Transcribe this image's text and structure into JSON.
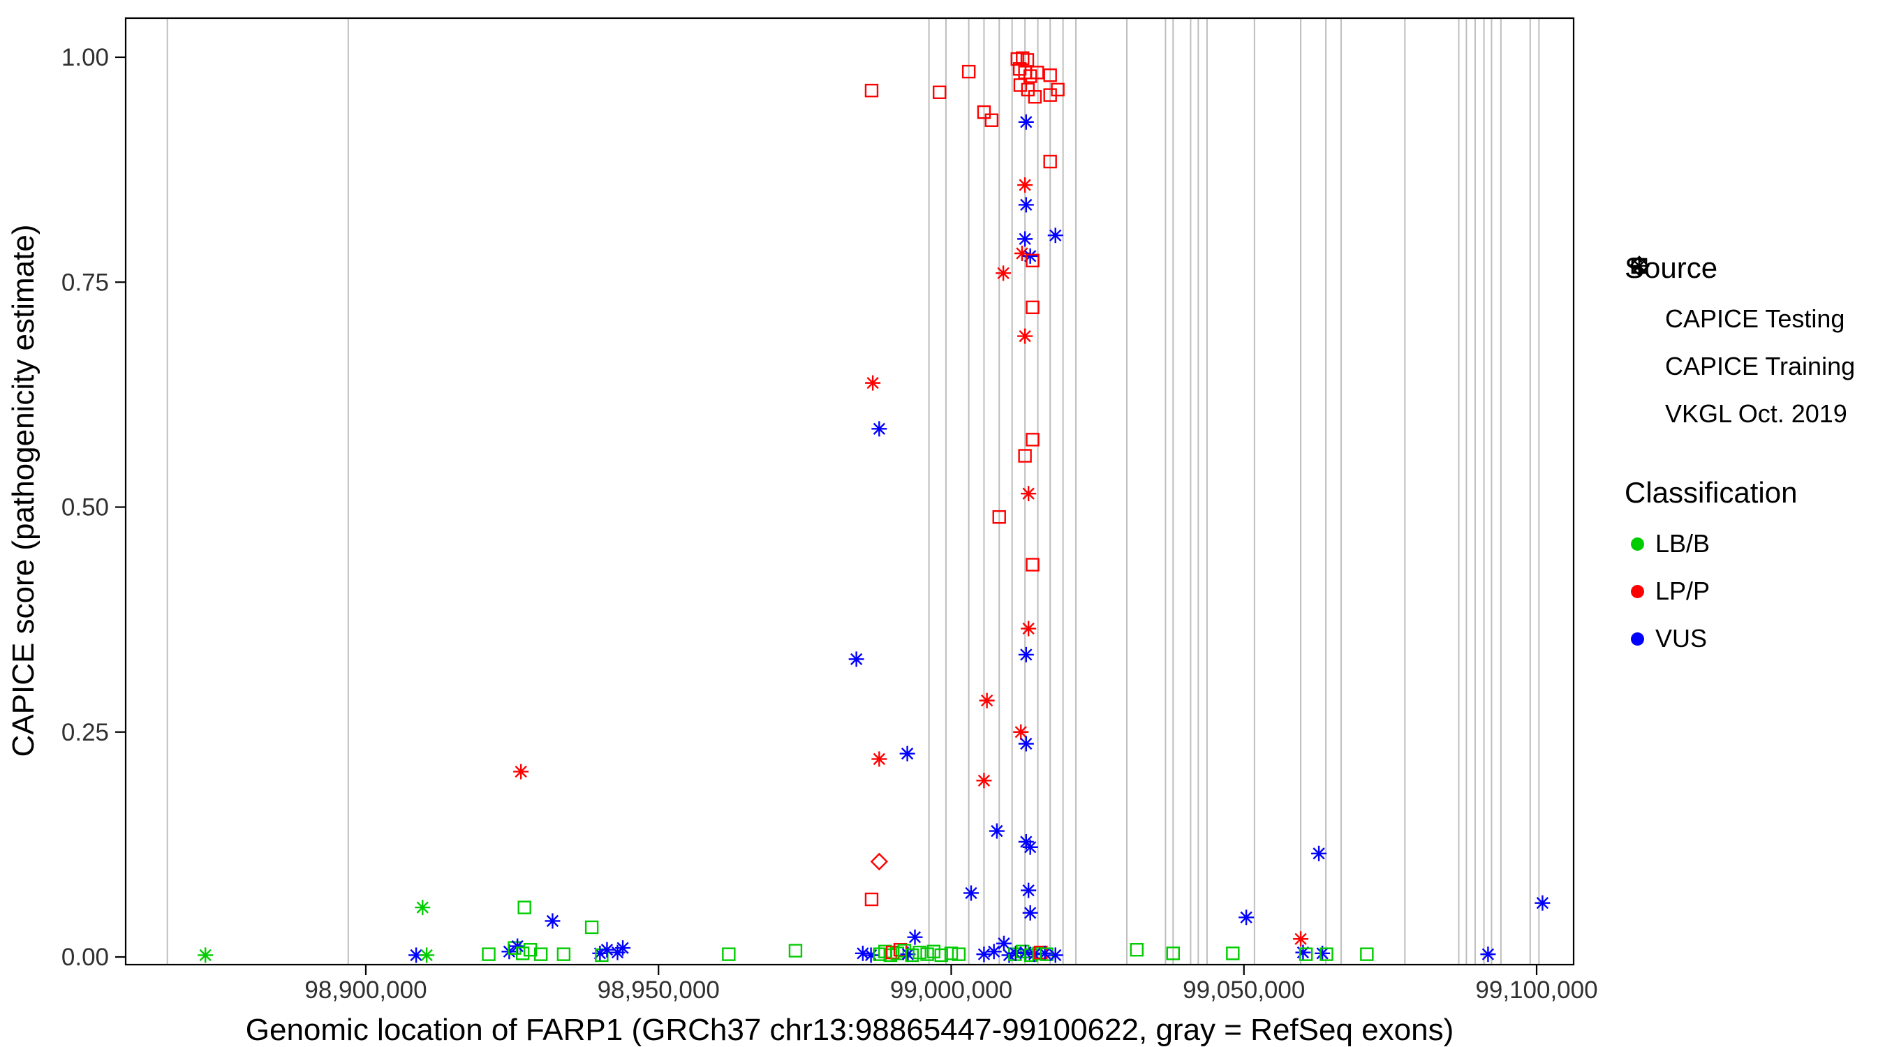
{
  "chart_data": {
    "type": "scatter",
    "title": "",
    "xlabel": "Genomic location of FARP1 (GRCh37 chr13:98865447-99100622, gray = RefSeq exons)",
    "ylabel": "CAPICE score (pathogenicity estimate)",
    "x_domain": [
      98858980,
      99106320
    ],
    "y_domain": [
      0,
      1
    ],
    "grid": false,
    "legend_position": "right",
    "x_ticks": [
      {
        "value": 98900000,
        "label": "98,900,000"
      },
      {
        "value": 98950000,
        "label": "98,950,000"
      },
      {
        "value": 99000000,
        "label": "99,000,000"
      },
      {
        "value": 99050000,
        "label": "99,050,000"
      },
      {
        "value": 99100000,
        "label": "99,100,000"
      }
    ],
    "y_ticks": [
      {
        "value": 0,
        "label": "0.00"
      },
      {
        "value": 0.25,
        "label": "0.25"
      },
      {
        "value": 0.5,
        "label": "0.50"
      },
      {
        "value": 0.75,
        "label": "0.75"
      },
      {
        "value": 1,
        "label": "1.00"
      }
    ],
    "exon_color": "#bebebe",
    "exons": [
      98866100,
      98897000,
      98996200,
      98999100,
      99003000,
      99005600,
      99008200,
      99010400,
      99012600,
      99014800,
      99016900,
      99019100,
      99021300,
      99030000,
      99036600,
      99037900,
      99040900,
      99042200,
      99043700,
      99051800,
      99059700,
      99064000,
      99066600,
      99077500,
      99086700,
      99088000,
      99089500,
      99091000,
      99092300,
      99093900,
      99098900,
      99100400
    ],
    "classification_colors": {
      "LB/B": "#00cc00",
      "LP/P": "#ff0000",
      "VUS": "#0000ff"
    },
    "source_shapes": {
      "testing": "diamond",
      "training": "square",
      "vkgl": "asterisk"
    },
    "source_names": {
      "testing": "CAPICE Testing",
      "training": "CAPICE Training",
      "vkgl": "VKGL Oct. 2019"
    },
    "point_format": [
      "genomic_position",
      "capice_score",
      "source",
      "classification"
    ],
    "points": [
      [
        98872600,
        0.002,
        "vkgl",
        "LB/B"
      ],
      [
        98908600,
        0.002,
        "vkgl",
        "VUS"
      ],
      [
        98909700,
        0.055,
        "vkgl",
        "LB/B"
      ],
      [
        98910400,
        0.002,
        "vkgl",
        "LB/B"
      ],
      [
        98921000,
        0.003,
        "training",
        "LB/B"
      ],
      [
        98924500,
        0.006,
        "vkgl",
        "VUS"
      ],
      [
        98925400,
        0.01,
        "training",
        "LB/B"
      ],
      [
        98925900,
        0.012,
        "vkgl",
        "VUS"
      ],
      [
        98926500,
        0.206,
        "vkgl",
        "LP/P"
      ],
      [
        98926800,
        0.004,
        "training",
        "LB/B"
      ],
      [
        98927100,
        0.055,
        "training",
        "LB/B"
      ],
      [
        98928100,
        0.008,
        "training",
        "LB/B"
      ],
      [
        98929900,
        0.003,
        "training",
        "LB/B"
      ],
      [
        98931900,
        0.04,
        "vkgl",
        "VUS"
      ],
      [
        98933800,
        0.003,
        "training",
        "LB/B"
      ],
      [
        98938600,
        0.033,
        "training",
        "LB/B"
      ],
      [
        98940000,
        0.004,
        "vkgl",
        "VUS"
      ],
      [
        98940300,
        0.002,
        "training",
        "LB/B"
      ],
      [
        98941200,
        0.008,
        "vkgl",
        "VUS"
      ],
      [
        98943000,
        0.005,
        "vkgl",
        "VUS"
      ],
      [
        98943900,
        0.01,
        "vkgl",
        "VUS"
      ],
      [
        98962000,
        0.003,
        "training",
        "LB/B"
      ],
      [
        98973400,
        0.007,
        "training",
        "LB/B"
      ],
      [
        98983800,
        0.331,
        "vkgl",
        "VUS"
      ],
      [
        98984900,
        0.004,
        "vkgl",
        "VUS"
      ],
      [
        98986300,
        0.002,
        "vkgl",
        "VUS"
      ],
      [
        98986400,
        0.963,
        "training",
        "LP/P"
      ],
      [
        98986400,
        0.064,
        "training",
        "LP/P"
      ],
      [
        98986600,
        0.638,
        "vkgl",
        "LP/P"
      ],
      [
        98987700,
        0.587,
        "vkgl",
        "VUS"
      ],
      [
        98987700,
        0.22,
        "vkgl",
        "LP/P"
      ],
      [
        98987700,
        0.106,
        "testing",
        "LP/P"
      ],
      [
        98987800,
        0.003,
        "training",
        "LB/B"
      ],
      [
        98988700,
        0.006,
        "training",
        "LB/B"
      ],
      [
        98989600,
        0.002,
        "training",
        "LB/B"
      ],
      [
        98990000,
        0.005,
        "training",
        "LP/P"
      ],
      [
        98990800,
        0.004,
        "training",
        "LB/B"
      ],
      [
        98991300,
        0.008,
        "training",
        "LP/P"
      ],
      [
        98992000,
        0.007,
        "training",
        "LB/B"
      ],
      [
        98992500,
        0.226,
        "vkgl",
        "VUS"
      ],
      [
        98992600,
        0.003,
        "vkgl",
        "VUS"
      ],
      [
        98993300,
        0.002,
        "training",
        "LB/B"
      ],
      [
        98993800,
        0.022,
        "vkgl",
        "VUS"
      ],
      [
        98994600,
        0.005,
        "training",
        "LB/B"
      ],
      [
        98995900,
        0.003,
        "training",
        "LB/B"
      ],
      [
        98997000,
        0.006,
        "training",
        "LB/B"
      ],
      [
        98998000,
        0.961,
        "training",
        "LP/P"
      ],
      [
        98998300,
        0.002,
        "training",
        "LB/B"
      ],
      [
        99000000,
        0.004,
        "training",
        "LB/B"
      ],
      [
        99001300,
        0.003,
        "training",
        "LB/B"
      ],
      [
        99003000,
        0.984,
        "training",
        "LP/P"
      ],
      [
        99003400,
        0.071,
        "vkgl",
        "VUS"
      ],
      [
        99005600,
        0.939,
        "training",
        "LP/P"
      ],
      [
        99005600,
        0.196,
        "vkgl",
        "LP/P"
      ],
      [
        99005600,
        0.003,
        "vkgl",
        "VUS"
      ],
      [
        99006100,
        0.285,
        "vkgl",
        "LP/P"
      ],
      [
        99006900,
        0.93,
        "training",
        "LP/P"
      ],
      [
        99007300,
        0.006,
        "vkgl",
        "VUS"
      ],
      [
        99007800,
        0.14,
        "vkgl",
        "VUS"
      ],
      [
        99008200,
        0.489,
        "training",
        "LP/P"
      ],
      [
        99008900,
        0.76,
        "vkgl",
        "LP/P"
      ],
      [
        99009000,
        0.015,
        "vkgl",
        "VUS"
      ],
      [
        99009900,
        0.002,
        "vkgl",
        "VUS"
      ],
      [
        99010900,
        0.003,
        "training",
        "LB/B"
      ],
      [
        99011000,
        0.004,
        "vkgl",
        "VUS"
      ],
      [
        99011300,
        0.998,
        "training",
        "LP/P"
      ],
      [
        99011700,
        0.987,
        "training",
        "LP/P"
      ],
      [
        99011800,
        0.969,
        "training",
        "LP/P"
      ],
      [
        99011900,
        0.25,
        "vkgl",
        "LP/P"
      ],
      [
        99012100,
        0.782,
        "vkgl",
        "LP/P"
      ],
      [
        99012200,
        0.999,
        "training",
        "LP/P"
      ],
      [
        99012200,
        0.006,
        "training",
        "LB/B"
      ],
      [
        99012600,
        0.983,
        "training",
        "LP/P"
      ],
      [
        99012600,
        0.858,
        "vkgl",
        "LP/P"
      ],
      [
        99012600,
        0.798,
        "vkgl",
        "VUS"
      ],
      [
        99012600,
        0.69,
        "vkgl",
        "LP/P"
      ],
      [
        99012600,
        0.557,
        "training",
        "LP/P"
      ],
      [
        99012700,
        0.005,
        "vkgl",
        "VUS"
      ],
      [
        99012800,
        0.928,
        "vkgl",
        "VUS"
      ],
      [
        99012800,
        0.836,
        "vkgl",
        "VUS"
      ],
      [
        99012800,
        0.336,
        "vkgl",
        "VUS"
      ],
      [
        99012800,
        0.237,
        "vkgl",
        "VUS"
      ],
      [
        99012800,
        0.128,
        "vkgl",
        "VUS"
      ],
      [
        99013000,
        0.997,
        "training",
        "LP/P"
      ],
      [
        99013100,
        0.964,
        "training",
        "LP/P"
      ],
      [
        99013200,
        0.515,
        "vkgl",
        "LP/P"
      ],
      [
        99013200,
        0.365,
        "vkgl",
        "LP/P"
      ],
      [
        99013200,
        0.074,
        "vkgl",
        "VUS"
      ],
      [
        99013500,
        0.979,
        "training",
        "LP/P"
      ],
      [
        99013500,
        0.779,
        "vkgl",
        "VUS"
      ],
      [
        99013500,
        0.122,
        "vkgl",
        "VUS"
      ],
      [
        99013500,
        0.049,
        "vkgl",
        "VUS"
      ],
      [
        99013600,
        0.002,
        "training",
        "LB/B"
      ],
      [
        99013900,
        0.774,
        "training",
        "LP/P"
      ],
      [
        99013900,
        0.722,
        "training",
        "LP/P"
      ],
      [
        99013900,
        0.575,
        "training",
        "LP/P"
      ],
      [
        99013900,
        0.436,
        "training",
        "LP/P"
      ],
      [
        99014200,
        0.003,
        "vkgl",
        "VUS"
      ],
      [
        99014300,
        0.956,
        "training",
        "LP/P"
      ],
      [
        99014700,
        0.983,
        "training",
        "LP/P"
      ],
      [
        99015000,
        0.004,
        "training",
        "LB/B"
      ],
      [
        99015300,
        0.005,
        "training",
        "LP/P"
      ],
      [
        99016000,
        0.004,
        "vkgl",
        "VUS"
      ],
      [
        99016300,
        0.003,
        "training",
        "LB/B"
      ],
      [
        99016900,
        0.98,
        "training",
        "LP/P"
      ],
      [
        99016900,
        0.958,
        "training",
        "LP/P"
      ],
      [
        99016900,
        0.884,
        "training",
        "LP/P"
      ],
      [
        99017800,
        0.802,
        "vkgl",
        "VUS"
      ],
      [
        99017800,
        0.002,
        "vkgl",
        "VUS"
      ],
      [
        99018200,
        0.964,
        "training",
        "LP/P"
      ],
      [
        99031700,
        0.008,
        "training",
        "LB/B"
      ],
      [
        99037900,
        0.004,
        "training",
        "LB/B"
      ],
      [
        99048100,
        0.004,
        "training",
        "LB/B"
      ],
      [
        99050400,
        0.044,
        "vkgl",
        "VUS"
      ],
      [
        99059700,
        0.02,
        "vkgl",
        "LP/P"
      ],
      [
        99060100,
        0.005,
        "vkgl",
        "VUS"
      ],
      [
        99060600,
        0.003,
        "training",
        "LB/B"
      ],
      [
        99062800,
        0.115,
        "vkgl",
        "VUS"
      ],
      [
        99063400,
        0.004,
        "vkgl",
        "VUS"
      ],
      [
        99064100,
        0.003,
        "training",
        "LB/B"
      ],
      [
        99071000,
        0.003,
        "training",
        "LB/B"
      ],
      [
        99091700,
        0.003,
        "vkgl",
        "VUS"
      ],
      [
        99101000,
        0.06,
        "vkgl",
        "VUS"
      ]
    ]
  },
  "legend": {
    "source": {
      "title": "Source",
      "items": [
        {
          "label": "CAPICE Testing",
          "shape": "diamond"
        },
        {
          "label": "CAPICE Training",
          "shape": "square"
        },
        {
          "label": "VKGL Oct. 2019",
          "shape": "asterisk"
        }
      ]
    },
    "classification": {
      "title": "Classification",
      "items": [
        {
          "label": "LB/B",
          "color": "#00cc00"
        },
        {
          "label": "LP/P",
          "color": "#ff0000"
        },
        {
          "label": "VUS",
          "color": "#0000ff"
        }
      ]
    }
  }
}
